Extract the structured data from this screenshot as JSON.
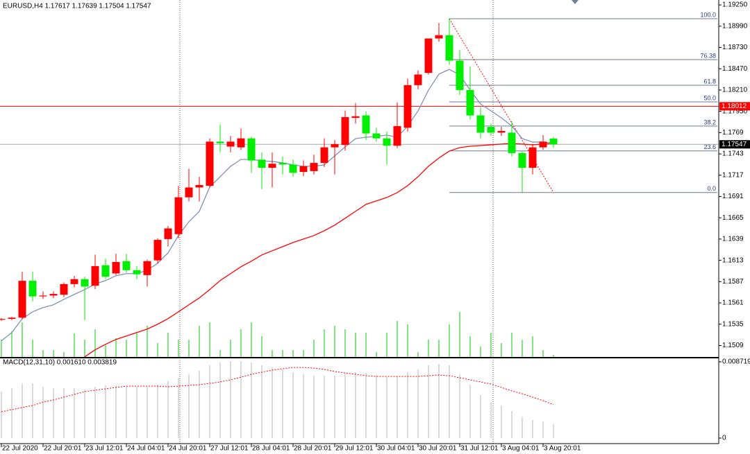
{
  "chart_data": [
    {
      "type": "candlestick",
      "title": "EURUSD,H4  1.17617 1.17639 1.17504 1.17547",
      "categories": [
        "22 Jul 2020",
        null,
        null,
        null,
        "22 Jul 20:01",
        null,
        null,
        null,
        "23 Jul 12:01",
        null,
        null,
        null,
        "24 Jul 04:01",
        null,
        null,
        null,
        "24 Jul 20:01",
        null,
        null,
        null,
        "27 Jul 12:01",
        null,
        null,
        null,
        "28 Jul 04:01",
        null,
        null,
        null,
        "28 Jul 20:01",
        null,
        null,
        null,
        "29 Jul 12:01",
        null,
        null,
        null,
        "30 Jul 04:01",
        null,
        null,
        null,
        "30 Jul 20:01",
        null,
        null,
        null,
        "31 Jul 12:01",
        null,
        null,
        null,
        "3 Aug 04:01",
        null,
        null,
        null,
        "3 Aug 20:01",
        null
      ],
      "open": [
        1.15405,
        1.15415,
        1.1543,
        1.1588,
        1.1569,
        1.157,
        1.1571,
        1.1584,
        1.159,
        1.1582,
        1.1607,
        1.1597,
        1.1612,
        1.1601,
        1.1595,
        1.1613,
        1.1639,
        1.1645,
        1.169,
        1.1702,
        1.1704,
        1.1758,
        1.1752,
        1.1751,
        1.1762,
        1.1736,
        1.1726,
        1.1732,
        1.173,
        1.1721,
        1.1722,
        1.1732,
        1.1751,
        1.1754,
        1.1787,
        1.179,
        1.1768,
        1.1762,
        1.1753,
        1.1775,
        1.1827,
        1.1842,
        1.1884,
        1.1888,
        1.1857,
        1.1821,
        1.179,
        1.1776,
        1.1769,
        1.1769,
        1.1744,
        1.1726,
        1.1751,
        1.17617
      ],
      "high": [
        1.15425,
        1.1544,
        1.1599,
        1.1599,
        1.1575,
        1.1575,
        1.1586,
        1.1594,
        1.1593,
        1.162,
        1.1615,
        1.1621,
        1.1621,
        1.1606,
        1.1614,
        1.164,
        1.1655,
        1.1704,
        1.1725,
        1.1715,
        1.1762,
        1.1779,
        1.1765,
        1.1774,
        1.1764,
        1.1745,
        1.1745,
        1.174,
        1.1736,
        1.1735,
        1.1742,
        1.1762,
        1.176,
        1.1796,
        1.1805,
        1.1795,
        1.1775,
        1.177,
        1.1806,
        1.1835,
        1.1845,
        1.1884,
        1.1903,
        1.19081,
        1.187,
        1.185,
        1.18,
        1.178,
        1.1776,
        1.1783,
        1.1746,
        1.1755,
        1.1766,
        1.17639
      ],
      "low": [
        1.1539,
        1.154,
        1.1541,
        1.1563,
        1.1566,
        1.1567,
        1.1568,
        1.158,
        1.154,
        1.1578,
        1.159,
        1.1595,
        1.1598,
        1.159,
        1.1581,
        1.1609,
        1.163,
        1.164,
        1.1685,
        1.1685,
        1.1702,
        1.1745,
        1.1745,
        1.1748,
        1.172,
        1.17,
        1.1702,
        1.1718,
        1.1715,
        1.1716,
        1.1718,
        1.1727,
        1.1718,
        1.1747,
        1.178,
        1.176,
        1.1758,
        1.173,
        1.175,
        1.177,
        1.1822,
        1.184,
        1.188,
        1.1852,
        1.1815,
        1.1785,
        1.1762,
        1.1765,
        1.1765,
        1.174,
        1.16959,
        1.1718,
        1.1748,
        1.17504
      ],
      "close": [
        1.15415,
        1.1543,
        1.1588,
        1.1569,
        1.157,
        1.1572,
        1.1584,
        1.159,
        1.1581,
        1.1606,
        1.1593,
        1.1611,
        1.1601,
        1.1596,
        1.1612,
        1.1638,
        1.1652,
        1.169,
        1.1702,
        1.1705,
        1.1758,
        1.1756,
        1.1758,
        1.1762,
        1.1735,
        1.1726,
        1.1731,
        1.173,
        1.172,
        1.1728,
        1.1732,
        1.1751,
        1.1755,
        1.1788,
        1.1789,
        1.1768,
        1.1762,
        1.1753,
        1.1777,
        1.1827,
        1.184,
        1.1884,
        1.1888,
        1.1857,
        1.1821,
        1.179,
        1.1769,
        1.1769,
        1.1771,
        1.1744,
        1.1726,
        1.1751,
        1.1758,
        1.17547
      ],
      "up_color": "#ff0000",
      "down_color": "#00ee00",
      "moving_averages": [
        {
          "color": "#8090b8",
          "values": [
            1.15147,
            1.15248,
            1.15418,
            1.15502,
            1.15553,
            1.15587,
            1.15654,
            1.15714,
            1.15773,
            1.15841,
            1.15883,
            1.15942,
            1.15968,
            1.15968,
            1.1601,
            1.16094,
            1.16221,
            1.16433,
            1.16602,
            1.16729,
            1.17025,
            1.17152,
            1.17279,
            1.17363,
            1.17363,
            1.17346,
            1.17338,
            1.17321,
            1.17296,
            1.17279,
            1.17279,
            1.17296,
            1.17406,
            1.17516,
            1.17617,
            1.17634,
            1.17643,
            1.1766,
            1.17634,
            1.1777,
            1.17956,
            1.18209,
            1.18404,
            1.18463,
            1.18395,
            1.18209,
            1.1804,
            1.17956,
            1.17871,
            1.1777,
            1.17617,
            1.17575,
            1.17575,
            1.17566
          ]
        },
        {
          "color": "#ff0000",
          "values": [
            null,
            null,
            null,
            null,
            null,
            null,
            null,
            null,
            1.14952,
            1.15037,
            1.15105,
            1.15164,
            1.15206,
            1.15248,
            1.15291,
            1.1535,
            1.15418,
            1.15502,
            1.15587,
            1.15671,
            1.15773,
            1.15883,
            1.15968,
            1.16052,
            1.1612,
            1.16196,
            1.16247,
            1.16297,
            1.16348,
            1.1639,
            1.16433,
            1.16492,
            1.1656,
            1.16644,
            1.16729,
            1.16814,
            1.16856,
            1.16898,
            1.16957,
            1.17042,
            1.17152,
            1.17279,
            1.1738,
            1.17465,
            1.17507,
            1.17524,
            1.17532,
            1.17541,
            1.1755,
            1.17558,
            1.1755,
            1.17541,
            1.1755,
            1.17558
          ]
        }
      ],
      "volume": {
        "color": "#00cc00",
        "values": [
          2500,
          3700,
          5000,
          2500,
          1000,
          1000,
          700,
          3400,
          2500,
          4000,
          1700,
          2700,
          2500,
          3500,
          4500,
          2000,
          3500,
          2500,
          2500,
          4500,
          5000,
          1000,
          2500,
          4000,
          5000,
          3000,
          1000,
          1000,
          1000,
          1000,
          2500,
          4000,
          4500,
          4000,
          3500,
          3500,
          700,
          3500,
          5200,
          4700,
          700,
          2500,
          2500,
          4700,
          6500,
          3000,
          1500,
          3500,
          2000,
          3500,
          2500,
          3000,
          1000,
          300
        ]
      },
      "fib_color": "#6b7a90",
      "fib_levels": [
        {
          "label": "100.0",
          "price": 1.19081
        },
        {
          "label": "76.38",
          "price": 1.18582
        },
        {
          "label": "61.8",
          "price": 1.18269
        },
        {
          "label": "50.0",
          "price": 1.18066
        },
        {
          "label": "38.2",
          "price": 1.1777
        },
        {
          "label": "23.6",
          "price": 1.17466
        },
        {
          "label": "0.0",
          "price": 1.16959
        }
      ],
      "alert_line": {
        "value": 1.18012,
        "color": "#ff0000"
      },
      "bid_line": {
        "value": 1.17547,
        "color": "#a8a8a8"
      },
      "ylim": [
        1.1495,
        1.1931
      ],
      "yticks": [
        {
          "value": 1.1925,
          "label": "1.19250"
        },
        {
          "value": 1.1899,
          "label": "1.18990"
        },
        {
          "value": 1.1873,
          "label": "1.18730"
        },
        {
          "value": 1.1847,
          "label": "1.18470"
        },
        {
          "value": 1.1821,
          "label": "1.18210"
        },
        {
          "value": 1.1795,
          "label": "1.17950"
        },
        1.1769,
        1.1743,
        1.1717,
        1.1691,
        1.1665,
        1.1639,
        1.1613,
        1.1587,
        1.1561,
        1.1535,
        1.1509
      ]
    },
    {
      "type": "macd",
      "title": "MACD(12,31,10) 0.001610 0.003819",
      "histogram_color": "#c0c0c0",
      "signal_color": "#ff0000",
      "histogram": [
        0.00531,
        0.00571,
        0.00626,
        0.00626,
        0.00587,
        0.00571,
        0.00571,
        0.00571,
        0.00555,
        0.00587,
        0.00602,
        0.00602,
        0.00587,
        0.00587,
        0.00587,
        0.0061,
        0.0065,
        0.0069,
        0.00729,
        0.00769,
        0.00832,
        0.00864,
        0.0088,
        0.0088,
        0.00864,
        0.00832,
        0.00808,
        0.00785,
        0.00753,
        0.00729,
        0.00713,
        0.00713,
        0.00713,
        0.00745,
        0.00753,
        0.00745,
        0.00721,
        0.00697,
        0.00705,
        0.00753,
        0.00785,
        0.00832,
        0.00848,
        0.00832,
        0.00729,
        0.0061,
        0.00491,
        0.00412,
        0.00373,
        0.00309,
        0.00238,
        0.00206,
        0.0019,
        0.00161
      ],
      "signal": [
        0.00301,
        0.00325,
        0.00349,
        0.00373,
        0.00412,
        0.00436,
        0.00468,
        0.00499,
        0.00531,
        0.00547,
        0.00563,
        0.00579,
        0.00594,
        0.00594,
        0.00594,
        0.00594,
        0.00587,
        0.00594,
        0.00602,
        0.0061,
        0.00626,
        0.00642,
        0.00666,
        0.00697,
        0.00729,
        0.00753,
        0.00777,
        0.00793,
        0.00808,
        0.00808,
        0.008,
        0.00785,
        0.00761,
        0.00745,
        0.00729,
        0.00713,
        0.00705,
        0.00705,
        0.00705,
        0.00705,
        0.00705,
        0.00713,
        0.00721,
        0.00713,
        0.0069,
        0.00666,
        0.00642,
        0.00618,
        0.00579,
        0.00539,
        0.00507,
        0.00468,
        0.00428,
        0.003819
      ],
      "ylim": [
        -0.000634,
        0.009116
      ],
      "yticks": [
        0.008719,
        0
      ]
    }
  ]
}
